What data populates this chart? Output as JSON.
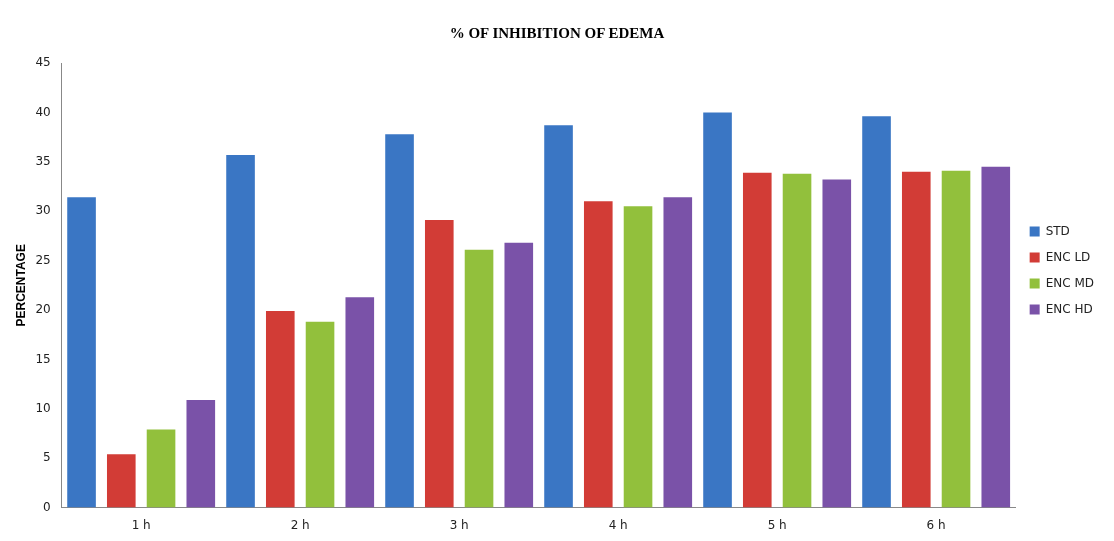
{
  "chart_data": {
    "type": "bar",
    "title": "% OF INHIBITION OF EDEMA",
    "ylabel": "PERCENTAGE",
    "categories": [
      "1 h",
      "2 h",
      "3 h",
      "4 h",
      "5 h",
      "6 h"
    ],
    "series": [
      {
        "name": "STD",
        "color": "#3a76c4",
        "values": [
          31.4,
          35.7,
          37.8,
          38.7,
          40.0,
          39.6
        ]
      },
      {
        "name": "ENC LD",
        "color": "#d23c36",
        "values": [
          5.4,
          19.9,
          29.1,
          31.0,
          33.9,
          34.0
        ]
      },
      {
        "name": "ENC MD",
        "color": "#92c03c",
        "values": [
          7.9,
          18.8,
          26.1,
          30.5,
          33.8,
          34.1
        ]
      },
      {
        "name": "ENC HD",
        "color": "#7a52a8",
        "values": [
          10.9,
          21.3,
          26.8,
          31.4,
          33.2,
          34.5
        ]
      }
    ],
    "ylim": [
      0,
      45
    ],
    "yticks": [
      0,
      5,
      10,
      15,
      20,
      25,
      30,
      35,
      40,
      45
    ],
    "grid": false,
    "legend": "right"
  }
}
